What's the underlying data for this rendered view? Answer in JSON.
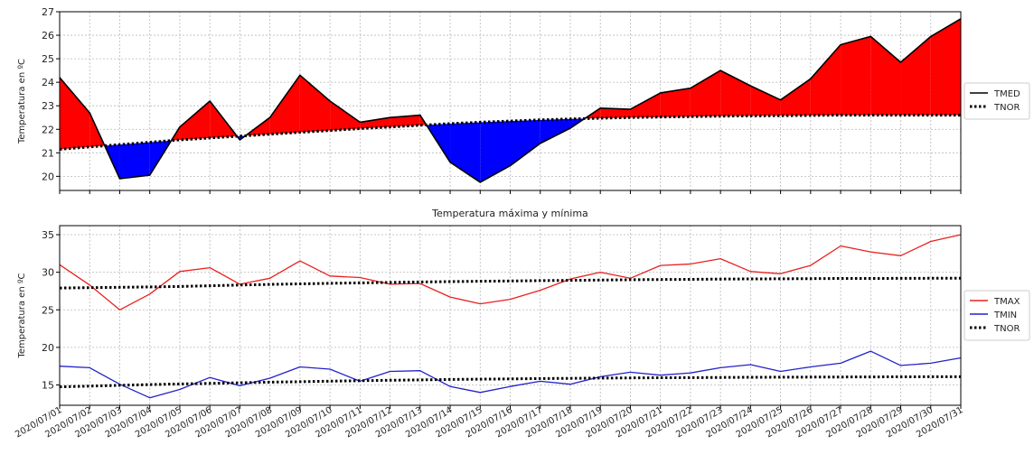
{
  "chart_data": [
    {
      "type": "area",
      "title": "",
      "xlabel": "",
      "ylabel": "Temperatura en ºC",
      "ylim": [
        19.4,
        27
      ],
      "yticks": [
        20,
        21,
        22,
        23,
        24,
        25,
        26,
        27
      ],
      "grid": true,
      "legend_position": "right",
      "x": [
        "2020/07/01",
        "2020/07/02",
        "2020/07/03",
        "2020/07/04",
        "2020/07/05",
        "2020/07/06",
        "2020/07/07",
        "2020/07/08",
        "2020/07/09",
        "2020/07/10",
        "2020/07/11",
        "2020/07/12",
        "2020/07/13",
        "2020/07/14",
        "2020/07/15",
        "2020/07/16",
        "2020/07/17",
        "2020/07/18",
        "2020/07/19",
        "2020/07/20",
        "2020/07/21",
        "2020/07/22",
        "2020/07/23",
        "2020/07/24",
        "2020/07/25",
        "2020/07/26",
        "2020/07/27",
        "2020/07/28",
        "2020/07/29",
        "2020/07/30",
        "2020/07/31"
      ],
      "series": [
        {
          "name": "TMED",
          "color": "#000000",
          "style": "solid",
          "values": [
            24.2,
            22.7,
            19.9,
            20.05,
            22.1,
            23.2,
            21.55,
            22.5,
            24.3,
            23.2,
            22.3,
            22.5,
            22.6,
            20.6,
            19.75,
            20.45,
            21.4,
            22.05,
            22.9,
            22.85,
            23.55,
            23.75,
            24.5,
            23.85,
            23.25,
            24.15,
            25.6,
            25.95,
            24.85,
            25.95,
            26.7
          ]
        },
        {
          "name": "TNOR",
          "color": "#000000",
          "style": "dotted",
          "values": [
            21.15,
            21.25,
            21.35,
            21.45,
            21.55,
            21.63,
            21.71,
            21.79,
            21.87,
            21.95,
            22.03,
            22.1,
            22.17,
            22.24,
            22.3,
            22.35,
            22.4,
            22.44,
            22.47,
            22.5,
            22.52,
            22.54,
            22.56,
            22.57,
            22.58,
            22.59,
            22.6,
            22.6,
            22.6,
            22.6,
            22.6
          ]
        }
      ],
      "fill_above_color": "#ff0000",
      "fill_below_color": "#0000ff"
    },
    {
      "type": "line",
      "title": "Temperatura máxima y mínima",
      "xlabel": "",
      "ylabel": "Temperatura en ºC",
      "ylim": [
        12.3,
        36.2
      ],
      "yticks": [
        15,
        20,
        25,
        30,
        35
      ],
      "grid": true,
      "legend_position": "right",
      "x": [
        "2020/07/01",
        "2020/07/02",
        "2020/07/03",
        "2020/07/04",
        "2020/07/05",
        "2020/07/06",
        "2020/07/07",
        "2020/07/08",
        "2020/07/09",
        "2020/07/10",
        "2020/07/11",
        "2020/07/12",
        "2020/07/13",
        "2020/07/14",
        "2020/07/15",
        "2020/07/16",
        "2020/07/17",
        "2020/07/18",
        "2020/07/19",
        "2020/07/20",
        "2020/07/21",
        "2020/07/22",
        "2020/07/23",
        "2020/07/24",
        "2020/07/25",
        "2020/07/26",
        "2020/07/27",
        "2020/07/28",
        "2020/07/29",
        "2020/07/30",
        "2020/07/31"
      ],
      "series": [
        {
          "name": "TMAX",
          "color": "#e8211e",
          "style": "solid",
          "values": [
            31.0,
            28.3,
            25.0,
            27.1,
            30.1,
            30.6,
            28.4,
            29.2,
            31.5,
            29.5,
            29.3,
            28.4,
            28.5,
            26.7,
            25.8,
            26.4,
            27.6,
            29.1,
            30.0,
            29.2,
            30.9,
            31.1,
            31.8,
            30.1,
            29.8,
            30.9,
            33.5,
            32.7,
            32.2,
            34.1,
            35.0
          ]
        },
        {
          "name": "TMIN",
          "color": "#2222cc",
          "style": "solid",
          "values": [
            17.5,
            17.3,
            15.1,
            13.3,
            14.4,
            16.0,
            14.9,
            15.9,
            17.4,
            17.1,
            15.5,
            16.8,
            16.9,
            14.8,
            14.0,
            14.8,
            15.5,
            15.1,
            16.1,
            16.7,
            16.3,
            16.6,
            17.3,
            17.7,
            16.8,
            17.4,
            17.9,
            19.5,
            17.6,
            17.9,
            18.6
          ]
        },
        {
          "name": "TNOR",
          "color": "#000000",
          "style": "dotted",
          "values": [
            14.75,
            14.85,
            14.95,
            15.05,
            15.13,
            15.21,
            15.29,
            15.37,
            15.44,
            15.51,
            15.57,
            15.63,
            15.68,
            15.73,
            15.77,
            15.81,
            15.85,
            15.88,
            15.91,
            15.94,
            15.96,
            15.98,
            16.0,
            16.02,
            16.04,
            16.05,
            16.06,
            16.07,
            16.08,
            16.09,
            16.1
          ]
        },
        {
          "name": "",
          "color": "#000000",
          "style": "dotted",
          "values": [
            27.9,
            27.95,
            28.0,
            28.05,
            28.1,
            28.2,
            28.3,
            28.38,
            28.45,
            28.52,
            28.58,
            28.64,
            28.7,
            28.75,
            28.8,
            28.84,
            28.88,
            28.92,
            28.96,
            29.0,
            29.03,
            29.06,
            29.09,
            29.11,
            29.13,
            29.15,
            29.17,
            29.18,
            29.19,
            29.2,
            29.2
          ]
        }
      ]
    }
  ]
}
